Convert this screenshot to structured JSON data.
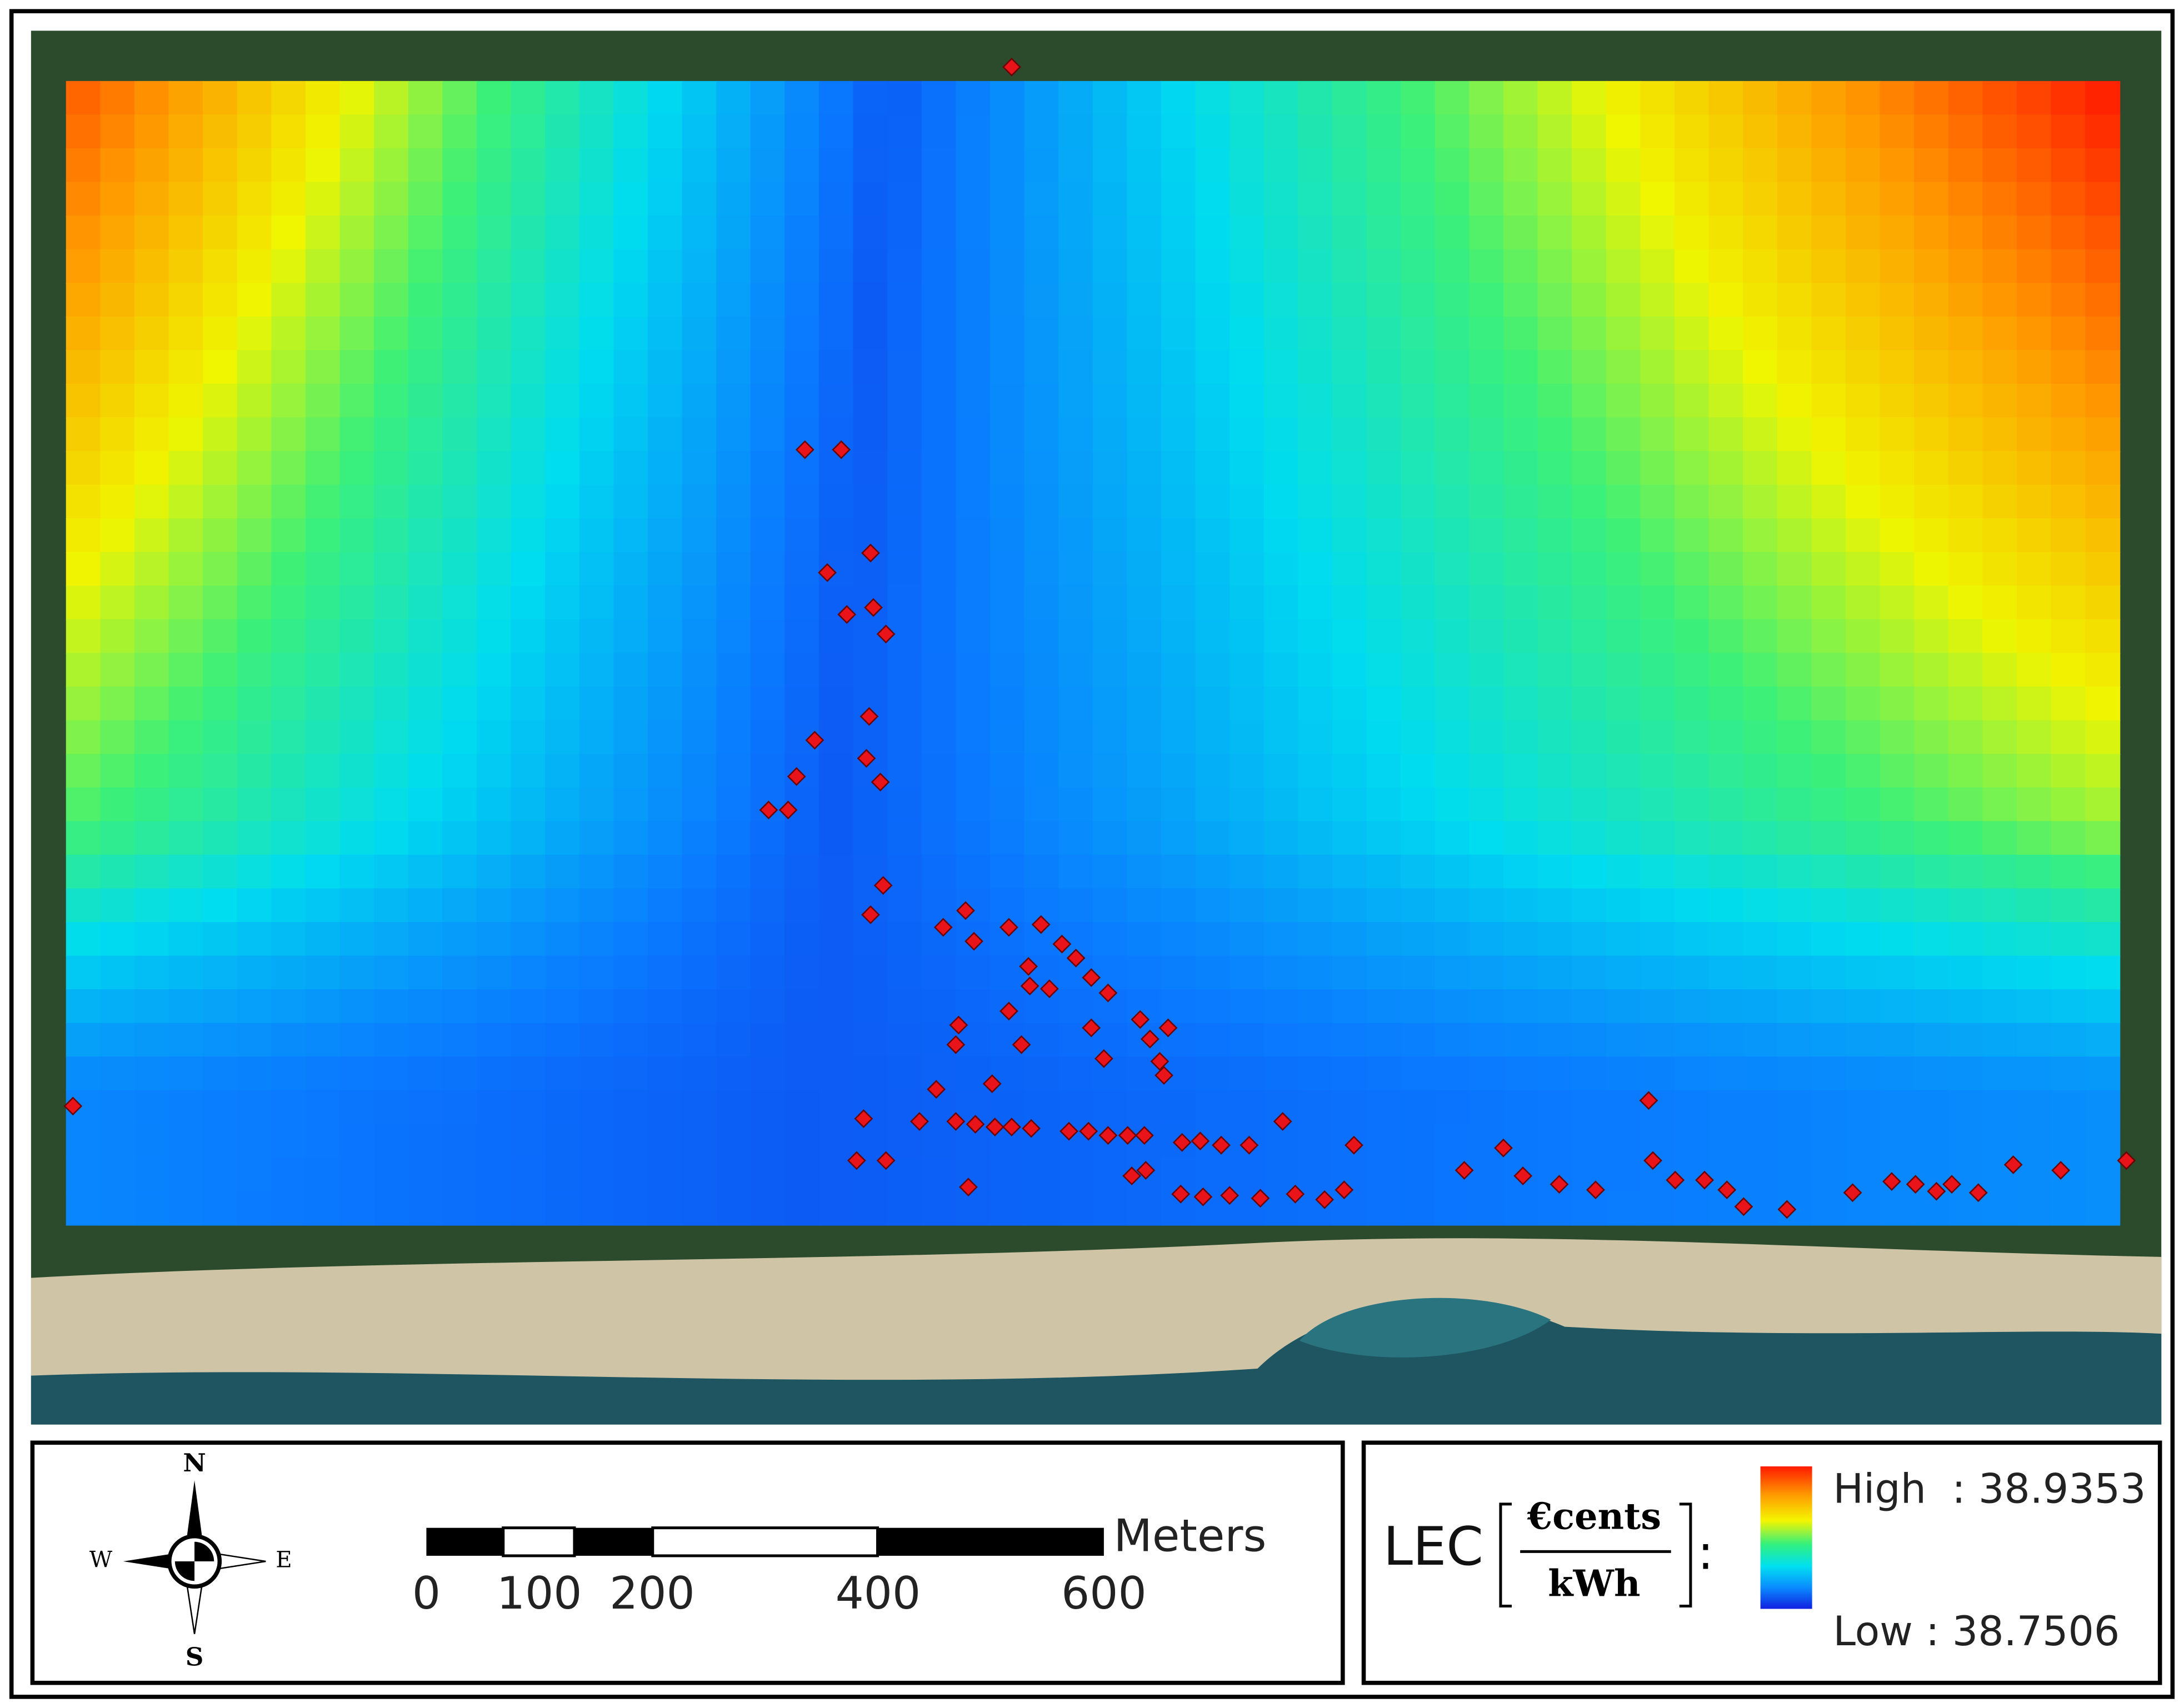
{
  "map": {
    "compass": {
      "north": "N",
      "east": "E",
      "south": "S",
      "west": "W"
    },
    "scale_bar": {
      "ticks": [
        0,
        100,
        200,
        400,
        600
      ],
      "unit": "Meters"
    },
    "legend": {
      "variable": "LEC",
      "unit_numerator": "€cents",
      "unit_denominator": "kWh",
      "separator": ":",
      "high": "High  : 38.9353",
      "low": "Low : 38.7506"
    }
  }
}
